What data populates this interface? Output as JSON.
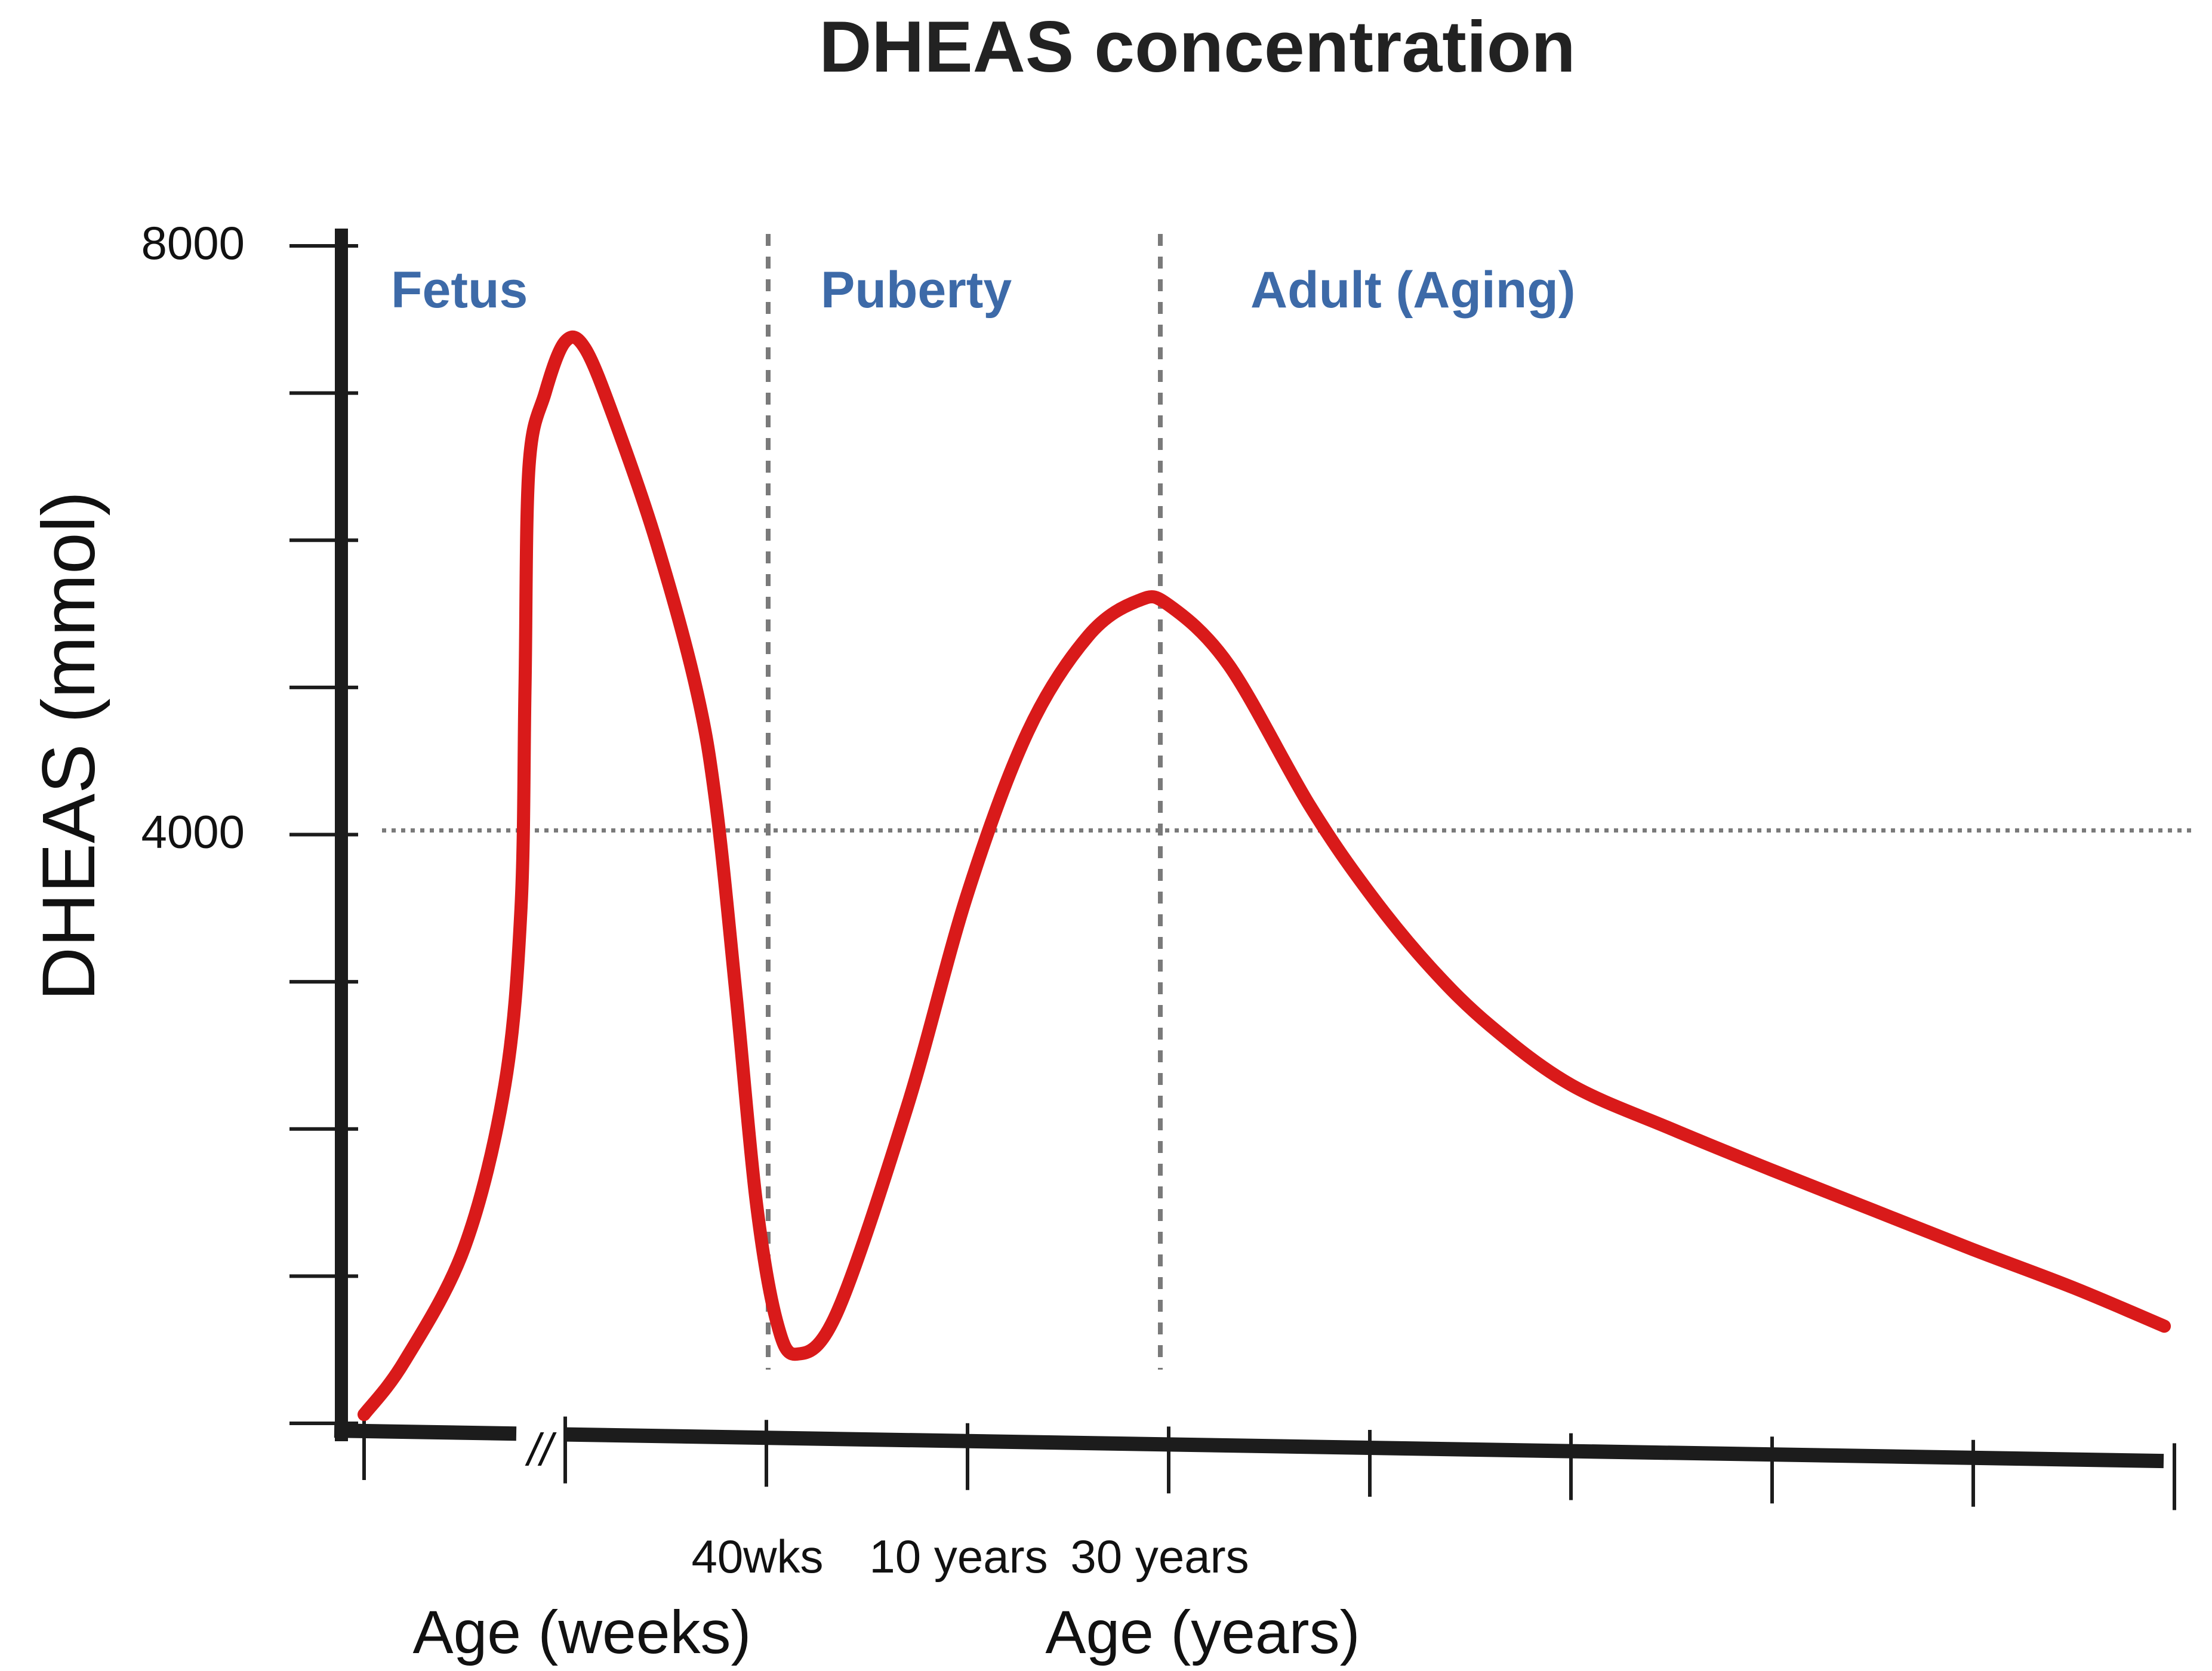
{
  "chart_data": {
    "type": "line",
    "title": "DHEAS concentration",
    "ylabel": "DHEAS (mmol)",
    "ylim": [
      0,
      8000
    ],
    "ytick_labels": [
      {
        "value": 8000,
        "label": "8000"
      },
      {
        "value": 4000,
        "label": "4000"
      }
    ],
    "reference_line": {
      "y": 4000,
      "style": "dotted"
    },
    "x_axis": {
      "break_symbol": "//",
      "tick_labels": [
        {
          "position": 2,
          "label": "40wks"
        },
        {
          "position": 3,
          "label": "10 years"
        },
        {
          "position": 4,
          "label": "30 years"
        }
      ],
      "segment_labels": [
        {
          "label": "Age (weeks)",
          "segment": "fetal"
        },
        {
          "label": "Age (years)",
          "segment": "postnatal"
        }
      ]
    },
    "phases": [
      {
        "label": "Fetus",
        "start": 0,
        "end": 2
      },
      {
        "label": "Puberty",
        "start": 2,
        "end": 4
      },
      {
        "label": "Adult (Aging)",
        "start": 4,
        "end": 9
      }
    ],
    "phase_boundaries": [
      2,
      4
    ],
    "series": [
      {
        "name": "DHEAS",
        "points": [
          [
            0.0,
            60
          ],
          [
            0.2,
            420
          ],
          [
            0.5,
            1200
          ],
          [
            0.7,
            2300
          ],
          [
            0.78,
            3500
          ],
          [
            0.8,
            5000
          ],
          [
            0.82,
            6500
          ],
          [
            0.9,
            7000
          ],
          [
            1.0,
            7350
          ],
          [
            1.1,
            7300
          ],
          [
            1.25,
            6800
          ],
          [
            1.45,
            6000
          ],
          [
            1.65,
            5000
          ],
          [
            1.75,
            4200
          ],
          [
            1.85,
            2900
          ],
          [
            1.95,
            1500
          ],
          [
            2.05,
            700
          ],
          [
            2.15,
            470
          ],
          [
            2.35,
            750
          ],
          [
            2.7,
            2150
          ],
          [
            3.0,
            3600
          ],
          [
            3.3,
            4700
          ],
          [
            3.6,
            5350
          ],
          [
            3.85,
            5590
          ],
          [
            4.0,
            5560
          ],
          [
            4.3,
            5150
          ],
          [
            4.7,
            4200
          ],
          [
            5.0,
            3600
          ],
          [
            5.3,
            3100
          ],
          [
            5.6,
            2700
          ],
          [
            6.0,
            2300
          ],
          [
            6.5,
            2000
          ],
          [
            7.0,
            1720
          ],
          [
            7.5,
            1450
          ],
          [
            8.0,
            1180
          ],
          [
            8.5,
            920
          ],
          [
            8.95,
            660
          ]
        ]
      }
    ]
  },
  "colors": {
    "curve": "#d91a1a",
    "axis": "#1c1c1c",
    "phase_label": "#3d6aa8",
    "guide": "#7a7a7a"
  }
}
